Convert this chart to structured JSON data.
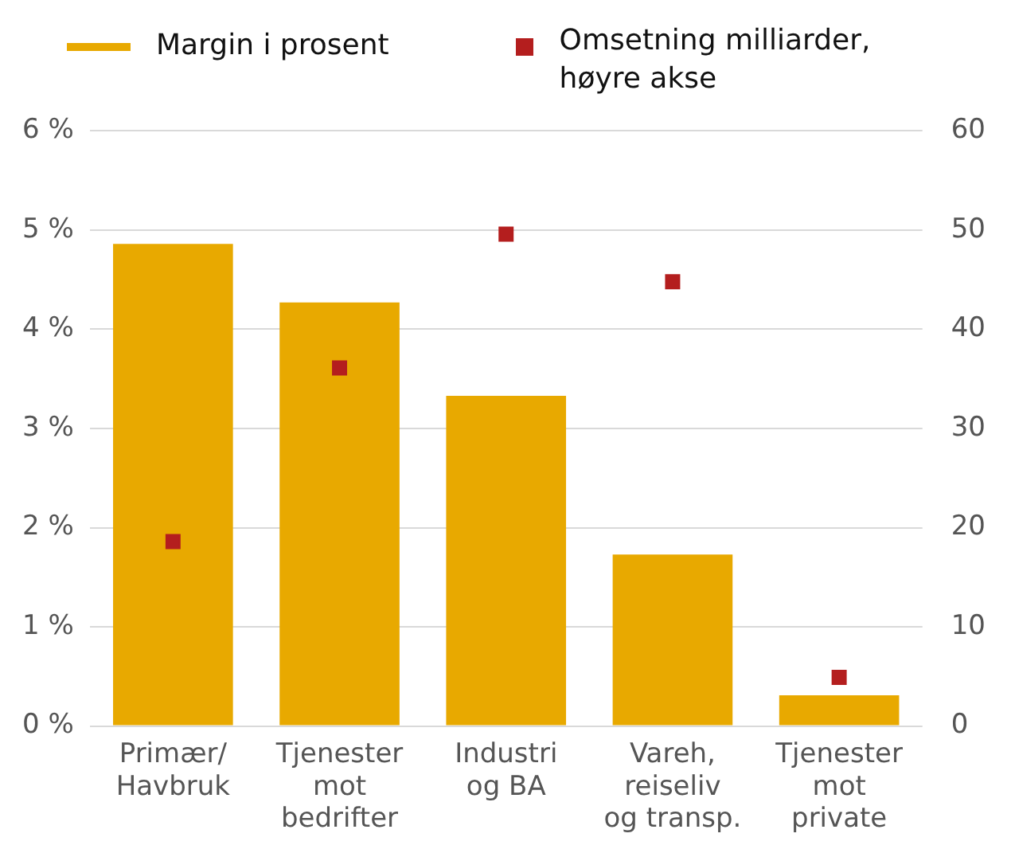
{
  "chart_data": {
    "type": "bar",
    "categories": [
      "Primær/\nHavbruk",
      "Tjenester\nmot\nbedrifter",
      "Industri\nog BA",
      "Vareh,\nreiseliv\nog transp.",
      "Tjenester\nmot\nprivate"
    ],
    "series": [
      {
        "name": "Margin i prosent",
        "color": "#e8a900",
        "values": [
          4.86,
          4.27,
          3.33,
          1.73,
          0.31
        ]
      },
      {
        "name": "Omsetning milliarder, høyre akse",
        "type": "scatter",
        "axis": "y2",
        "color": "#b41e1e",
        "marker": "square",
        "x": [
          "Primær/\nHavbruk",
          "Tjenester\nmot\nbedrifter",
          "Industri\nog BA",
          "Vareh,\nreiseliv\nog transp.",
          "Tjenester\nmot\nprivate"
        ],
        "values": [
          18.6,
          36.1,
          49.6,
          44.8,
          4.9
        ]
      }
    ],
    "ylim": [
      0,
      6
    ],
    "yticks": [
      {
        "value": 0,
        "label": "0 %"
      },
      {
        "value": 1,
        "label": "1 %"
      },
      {
        "value": 2,
        "label": "2 %"
      },
      {
        "value": 3,
        "label": "3 %"
      },
      {
        "value": 4,
        "label": "4 %"
      },
      {
        "value": 5,
        "label": "5 %"
      },
      {
        "value": 6,
        "label": "6 %"
      }
    ],
    "y2lim": [
      0,
      60
    ],
    "y2ticks": [
      0,
      10,
      20,
      30,
      40,
      50,
      60
    ],
    "grid": "y",
    "legend": "top"
  }
}
